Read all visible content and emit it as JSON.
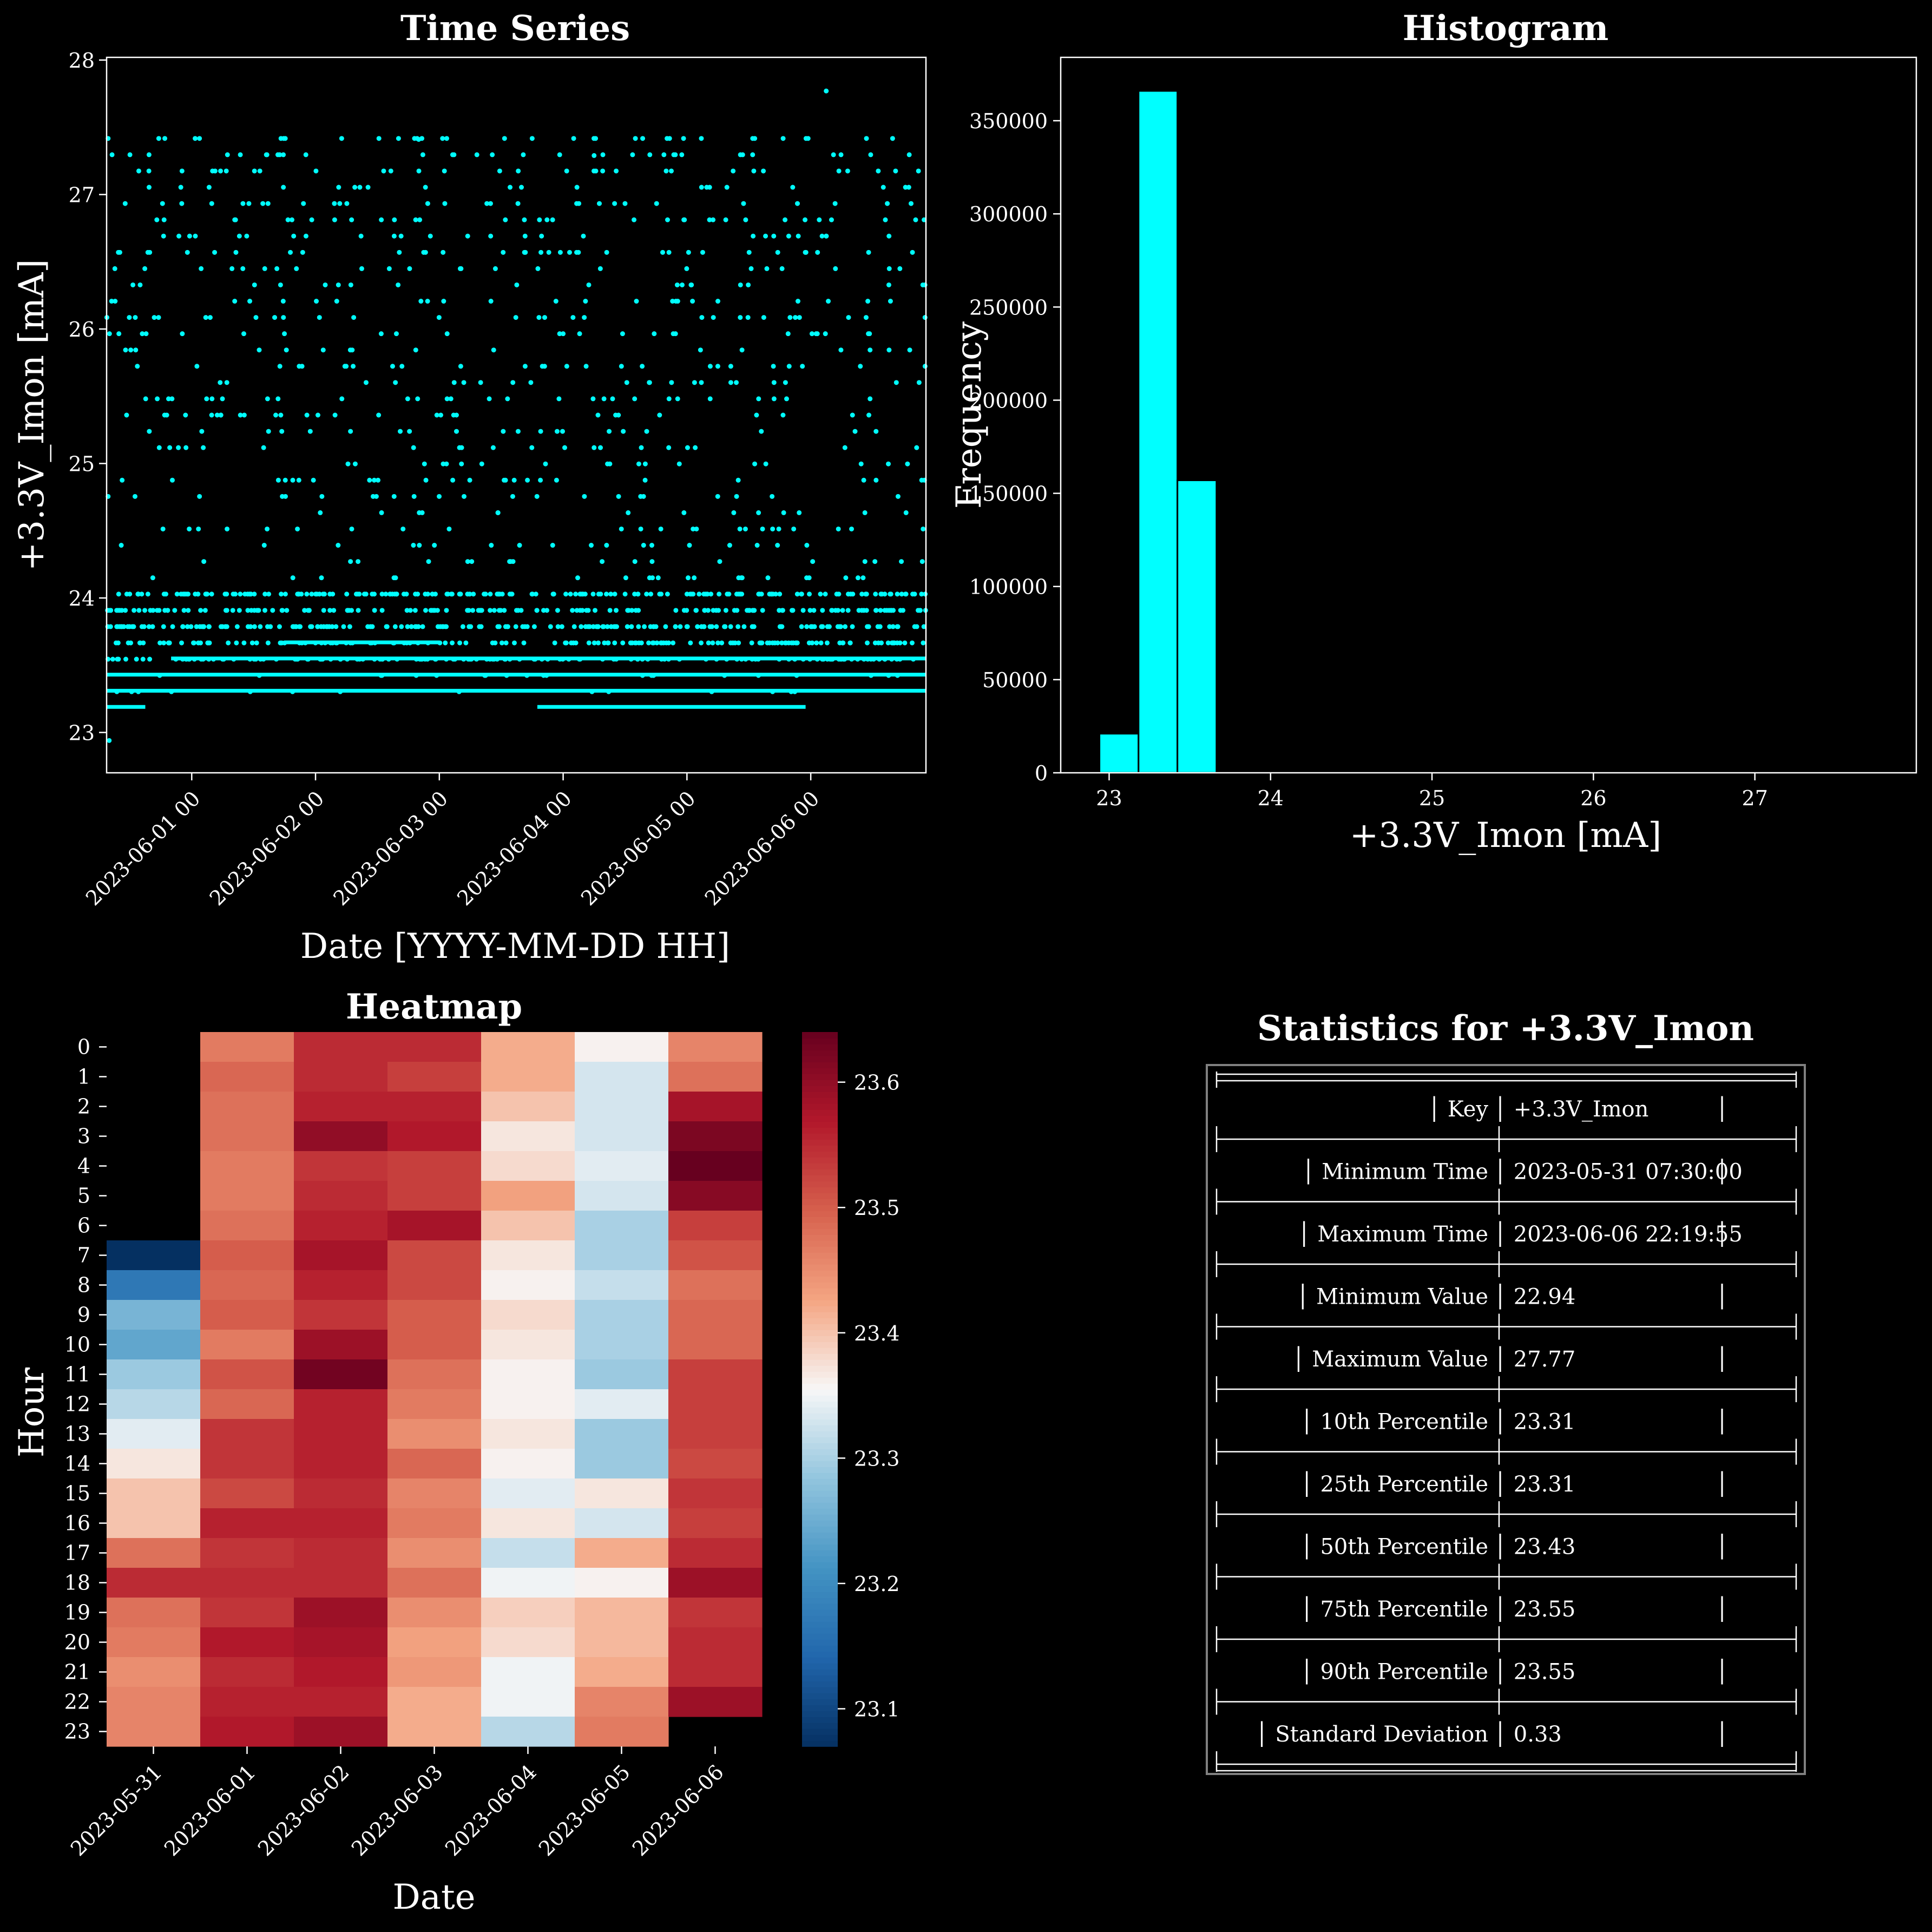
{
  "colors": {
    "background": "#000000",
    "foreground": "#ffffff",
    "scatter_color": "#00ffff",
    "histogram_color": "#00ffff",
    "table_border": "#808080"
  },
  "chart_data": [
    {
      "type": "scatter",
      "title": "Time Series",
      "xlabel": "Date [YYYY-MM-DD HH]",
      "ylabel": "+3.3V_Imon [mA]",
      "x_is_date": true,
      "xlim": [
        "2023-05-31 07:30:00",
        "2023-06-06 22:19:55"
      ],
      "ylim": [
        22.7,
        28.02
      ],
      "x_ticks": [
        "2023-06-01 00:00",
        "2023-06-02 00:00",
        "2023-06-03 00:00",
        "2023-06-04 00:00",
        "2023-06-05 00:00",
        "2023-06-06 00:00"
      ],
      "x_tick_labels": [
        "2023-06-01 00",
        "2023-06-02 00",
        "2023-06-03 00",
        "2023-06-04 00",
        "2023-06-05 00",
        "2023-06-06 00"
      ],
      "y_ticks": [
        23,
        24,
        25,
        26,
        27,
        28
      ],
      "quantization_step": 0.121,
      "y_min": 22.94,
      "y_max": 27.77,
      "dense_levels": [
        {
          "value": 23.31,
          "from": "2023-05-31 07:30:00",
          "to": "2023-06-06 22:19:55"
        },
        {
          "value": 23.43,
          "from": "2023-05-31 07:30:00",
          "to": "2023-06-06 22:19:55"
        },
        {
          "value": 23.55,
          "from": "2023-05-31 20:00:00",
          "to": "2023-06-06 22:19:55"
        },
        {
          "value": 23.19,
          "from": "2023-05-31 07:30:00",
          "to": "2023-05-31 15:00:00"
        },
        {
          "value": 23.19,
          "from": "2023-06-03 19:00:00",
          "to": "2023-06-05 23:00:00"
        },
        {
          "value": 23.67,
          "from": "2023-06-01 18:00:00",
          "to": "2023-06-03 00:00:00"
        }
      ],
      "notable_points": [
        {
          "x": "2023-05-31 08:00:00",
          "y": 22.94
        },
        {
          "x": "2023-06-02 20:00:00",
          "y": 27.41
        },
        {
          "x": "2023-06-06 03:00:00",
          "y": 27.77
        },
        {
          "x": "2023-06-04 06:00:00",
          "y": 27.29
        }
      ]
    },
    {
      "type": "bar",
      "title": "Histogram",
      "xlabel": "+3.3V_Imon [mA]",
      "ylabel": "Frequency",
      "bin_edges": [
        22.94,
        23.182,
        23.423,
        23.665,
        23.906,
        24.148,
        24.39,
        24.631,
        24.873,
        25.114,
        25.356,
        25.597,
        25.839,
        26.08,
        26.322,
        26.564,
        26.805,
        27.047,
        27.288,
        27.53,
        27.77
      ],
      "values": [
        21000,
        366000,
        157000,
        200,
        600,
        300,
        250,
        200,
        150,
        120,
        100,
        90,
        80,
        70,
        60,
        50,
        30,
        20,
        10,
        5
      ],
      "xlim": [
        22.7,
        28.0
      ],
      "ylim": [
        0,
        384000
      ],
      "x_ticks": [
        23,
        24,
        25,
        26,
        27
      ],
      "y_ticks": [
        0,
        50000,
        100000,
        150000,
        200000,
        250000,
        300000,
        350000
      ]
    },
    {
      "type": "heatmap",
      "title": "Heatmap",
      "xlabel": "Date",
      "ylabel": "Hour",
      "columns": [
        "2023-05-31",
        "2023-06-01",
        "2023-06-02",
        "2023-06-03",
        "2023-06-04",
        "2023-06-05",
        "2023-06-06"
      ],
      "rows": [
        "0",
        "1",
        "2",
        "3",
        "4",
        "5",
        "6",
        "7",
        "8",
        "9",
        "10",
        "11",
        "12",
        "13",
        "14",
        "15",
        "16",
        "17",
        "18",
        "19",
        "20",
        "21",
        "22",
        "23"
      ],
      "values": [
        [
          null,
          23.47,
          23.55,
          23.55,
          23.42,
          23.36,
          23.46
        ],
        [
          null,
          23.49,
          23.55,
          23.53,
          23.42,
          23.33,
          23.48
        ],
        [
          null,
          23.48,
          23.56,
          23.56,
          23.4,
          23.33,
          23.58
        ],
        [
          null,
          23.48,
          23.6,
          23.57,
          23.37,
          23.33,
          23.62
        ],
        [
          null,
          23.47,
          23.54,
          23.53,
          23.38,
          23.34,
          23.64
        ],
        [
          null,
          23.47,
          23.55,
          23.53,
          23.43,
          23.33,
          23.61
        ],
        [
          null,
          23.48,
          23.56,
          23.58,
          23.4,
          23.3,
          23.53
        ],
        [
          23.07,
          23.5,
          23.58,
          23.52,
          23.37,
          23.3,
          23.51
        ],
        [
          23.17,
          23.49,
          23.56,
          23.52,
          23.36,
          23.32,
          23.48
        ],
        [
          23.26,
          23.5,
          23.54,
          23.5,
          23.38,
          23.3,
          23.49
        ],
        [
          23.24,
          23.47,
          23.59,
          23.5,
          23.37,
          23.3,
          23.49
        ],
        [
          23.29,
          23.51,
          23.63,
          23.48,
          23.36,
          23.29,
          23.53
        ],
        [
          23.31,
          23.49,
          23.56,
          23.47,
          23.36,
          23.34,
          23.53
        ],
        [
          23.34,
          23.54,
          23.56,
          23.45,
          23.37,
          23.29,
          23.53
        ],
        [
          23.37,
          23.54,
          23.56,
          23.49,
          23.36,
          23.29,
          23.52
        ],
        [
          23.4,
          23.52,
          23.55,
          23.46,
          23.34,
          23.37,
          23.54
        ],
        [
          23.4,
          23.56,
          23.56,
          23.47,
          23.37,
          23.33,
          23.53
        ],
        [
          23.48,
          23.54,
          23.55,
          23.45,
          23.32,
          23.42,
          23.55
        ],
        [
          23.55,
          23.55,
          23.55,
          23.48,
          23.35,
          23.36,
          23.59
        ],
        [
          23.48,
          23.54,
          23.59,
          23.45,
          23.39,
          23.41,
          23.54
        ],
        [
          23.47,
          23.57,
          23.58,
          23.43,
          23.38,
          23.41,
          23.55
        ],
        [
          23.45,
          23.55,
          23.57,
          23.44,
          23.35,
          23.42,
          23.55
        ],
        [
          23.46,
          23.56,
          23.56,
          23.42,
          23.35,
          23.46,
          23.59
        ],
        [
          23.46,
          23.57,
          23.59,
          23.42,
          23.31,
          23.47,
          null
        ]
      ],
      "colorbar": {
        "colormap": "RdBu_r",
        "vmin": 23.07,
        "vmax": 23.64,
        "ticks": [
          23.1,
          23.2,
          23.3,
          23.4,
          23.5,
          23.6
        ]
      }
    },
    {
      "type": "table",
      "title": "Statistics for +3.3V_Imon",
      "rows": [
        {
          "label": "Key",
          "value": "+3.3V_Imon"
        },
        {
          "label": "Minimum Time",
          "value": "2023-05-31 07:30:00"
        },
        {
          "label": "Maximum Time",
          "value": "2023-06-06 22:19:55"
        },
        {
          "label": "Minimum Value",
          "value": "22.94"
        },
        {
          "label": "Maximum Value",
          "value": "27.77"
        },
        {
          "label": "10th Percentile",
          "value": "23.31"
        },
        {
          "label": "25th Percentile",
          "value": "23.31"
        },
        {
          "label": "50th Percentile",
          "value": "23.43"
        },
        {
          "label": "75th Percentile",
          "value": "23.55"
        },
        {
          "label": "90th Percentile",
          "value": "23.55"
        },
        {
          "label": "Standard Deviation",
          "value": "0.33"
        }
      ]
    }
  ]
}
